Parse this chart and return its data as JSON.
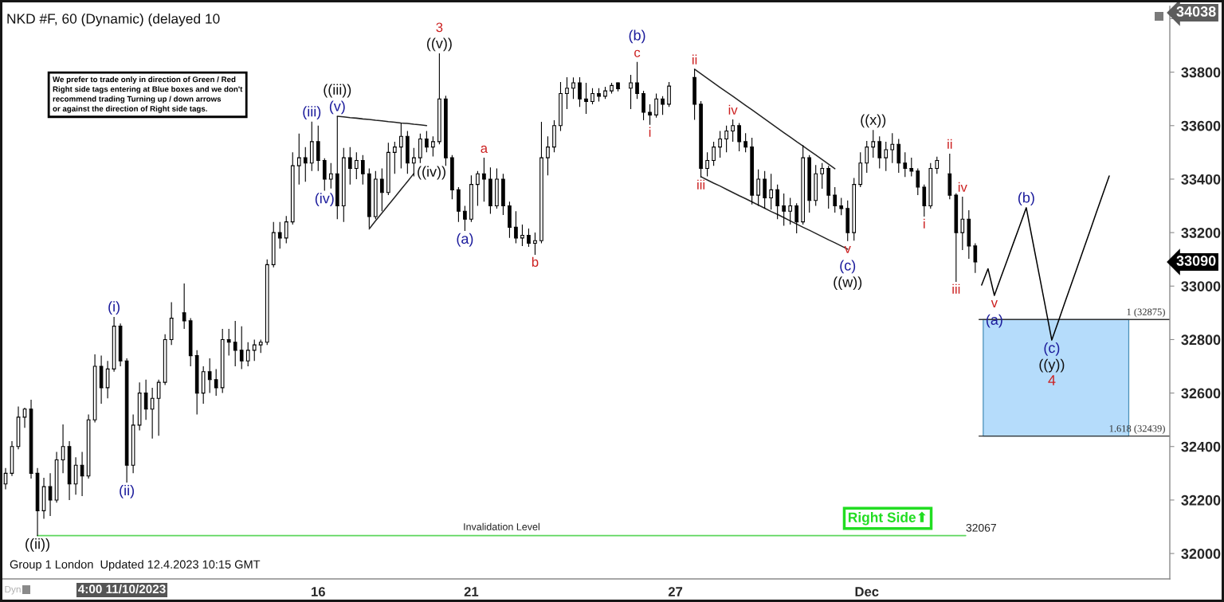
{
  "chart_data": {
    "type": "candlestick",
    "title": "NKD #F, 60 (Dynamic) (delayed 10",
    "color": "#000000",
    "categories": [
      null,
      null,
      null,
      null,
      null,
      null,
      null,
      null,
      null,
      null,
      null,
      null,
      null,
      null,
      null,
      null,
      null,
      null,
      null,
      null,
      null,
      null,
      null,
      null,
      null,
      null,
      null,
      null,
      null,
      null,
      null,
      null,
      null,
      null,
      null,
      null,
      null,
      null,
      null,
      null,
      null,
      null,
      null,
      null,
      null,
      null,
      null,
      null,
      null,
      "16",
      null,
      null,
      null,
      null,
      null,
      null,
      null,
      null,
      null,
      null,
      null,
      null,
      null,
      null,
      null,
      null,
      null,
      null,
      null,
      null,
      null,
      null,
      null,
      "21",
      null,
      null,
      null,
      null,
      null,
      null,
      null,
      null,
      null,
      null,
      null,
      null,
      null,
      null,
      null,
      null,
      null,
      null,
      null,
      null,
      null,
      null,
      null,
      null,
      null,
      null,
      null,
      null,
      null,
      null,
      null,
      "27",
      null,
      null,
      null,
      null,
      null,
      null,
      null,
      null,
      null,
      null,
      null,
      null,
      null,
      null,
      null,
      null,
      null,
      null,
      null,
      null,
      null,
      null,
      null,
      null,
      null,
      null,
      null,
      null,
      null,
      "Dec",
      null,
      null,
      null,
      null,
      null,
      null,
      null,
      null,
      null,
      null,
      null,
      null,
      null,
      null,
      null,
      null,
      null,
      null,
      null,
      null,
      null,
      null,
      null,
      null,
      null,
      null,
      null,
      null,
      null,
      null,
      null,
      null,
      null,
      null,
      null,
      null,
      null,
      null,
      null,
      null,
      null,
      null,
      null,
      null,
      null,
      null,
      null
    ],
    "ohlc": [
      [
        32260,
        32320,
        32240,
        32300
      ],
      [
        32300,
        32420,
        32290,
        32400
      ],
      [
        32400,
        32550,
        32390,
        32510
      ],
      [
        32510,
        32545,
        32470,
        32540
      ],
      [
        32540,
        32575,
        32280,
        32300
      ],
      [
        32300,
        32320,
        32065,
        32160
      ],
      [
        32160,
        32283,
        32130,
        32250
      ],
      [
        32250,
        32300,
        32140,
        32200
      ],
      [
        32200,
        32380,
        32190,
        32350
      ],
      [
        32350,
        32483,
        32300,
        32400
      ],
      [
        32400,
        32420,
        32200,
        32260
      ],
      [
        32260,
        32360,
        32220,
        32330
      ],
      [
        32330,
        32380,
        32215,
        32290
      ],
      [
        32290,
        32520,
        32280,
        32500
      ],
      [
        32500,
        32745,
        32490,
        32700
      ],
      [
        32700,
        32740,
        32560,
        32620
      ],
      [
        32620,
        32720,
        32580,
        32690
      ],
      [
        32690,
        32885,
        32680,
        32850
      ],
      [
        32850,
        32860,
        32700,
        32720
      ],
      [
        32720,
        32730,
        32265,
        32330
      ],
      [
        32330,
        32520,
        32300,
        32480
      ],
      [
        32480,
        32640,
        32460,
        32600
      ],
      [
        32600,
        32650,
        32500,
        32540
      ],
      [
        32540,
        32620,
        32430,
        32580
      ],
      [
        32580,
        32650,
        32440,
        32640
      ],
      [
        32640,
        32820,
        32630,
        32800
      ],
      [
        32800,
        32940,
        32780,
        32880
      ],
      null,
      [
        32900,
        33010,
        32840,
        32870
      ],
      [
        32870,
        32880,
        32700,
        32740
      ],
      [
        32740,
        32760,
        32520,
        32600
      ],
      [
        32600,
        32700,
        32560,
        32680
      ],
      [
        32680,
        32730,
        32600,
        32650
      ],
      [
        32650,
        32690,
        32590,
        32620
      ],
      [
        32620,
        32840,
        32600,
        32800
      ],
      [
        32800,
        32840,
        32740,
        32790
      ],
      [
        32790,
        32870,
        32700,
        32760
      ],
      [
        32760,
        32850,
        32690,
        32720
      ],
      [
        32720,
        32790,
        32700,
        32760
      ],
      [
        32760,
        32800,
        32720,
        32780
      ],
      [
        32780,
        32800,
        32750,
        32790
      ],
      [
        32790,
        33100,
        32780,
        33080
      ],
      [
        33080,
        33240,
        33070,
        33200
      ],
      [
        33200,
        33240,
        33140,
        33180
      ],
      [
        33180,
        33262,
        33160,
        33240
      ],
      [
        33240,
        33500,
        33230,
        33450
      ],
      [
        33450,
        33570,
        33380,
        33480
      ],
      [
        33480,
        33520,
        33390,
        33460
      ],
      [
        33460,
        33615,
        33430,
        33540
      ],
      [
        33540,
        33600,
        33430,
        33470
      ],
      [
        33470,
        33478,
        33357,
        33400
      ],
      [
        33400,
        33460,
        33365,
        33420
      ],
      [
        33420,
        33635,
        33250,
        33300
      ],
      [
        33300,
        33517,
        33240,
        33480
      ],
      [
        33480,
        33520,
        33380,
        33440
      ],
      [
        33440,
        33500,
        33400,
        33470
      ],
      [
        33470,
        33490,
        33380,
        33420
      ],
      [
        33420,
        33440,
        33218,
        33260
      ],
      [
        33260,
        33430,
        33250,
        33400
      ],
      [
        33400,
        33440,
        33280,
        33350
      ],
      [
        33350,
        33536,
        33340,
        33500
      ],
      [
        33500,
        33540,
        33420,
        33520
      ],
      [
        33520,
        33610,
        33440,
        33560
      ],
      [
        33560,
        33580,
        33420,
        33460
      ],
      [
        33460,
        33517,
        33410,
        33480
      ],
      [
        33480,
        33570,
        33460,
        33550
      ],
      [
        33550,
        33580,
        33500,
        33520
      ],
      [
        33520,
        33560,
        33485,
        33540
      ],
      [
        33540,
        33870,
        33530,
        33700
      ],
      [
        33700,
        33712,
        33450,
        33480
      ],
      [
        33480,
        33490,
        33325,
        33360
      ],
      [
        33360,
        33370,
        33240,
        33280
      ],
      [
        33280,
        33300,
        33206,
        33250
      ],
      [
        33250,
        33414,
        33240,
        33380
      ],
      [
        33380,
        33430,
        33300,
        33420
      ],
      [
        33420,
        33480,
        33316,
        33400
      ],
      [
        33400,
        33444,
        33270,
        33300
      ],
      [
        33300,
        33440,
        33290,
        33400
      ],
      [
        33400,
        33420,
        33266,
        33300
      ],
      [
        33300,
        33316,
        33180,
        33220
      ],
      [
        33220,
        33280,
        33160,
        33180
      ],
      [
        33180,
        33230,
        33150,
        33190
      ],
      [
        33190,
        33215,
        33147,
        33160
      ],
      [
        33160,
        33200,
        33117,
        33170
      ],
      [
        33170,
        33614,
        33160,
        33480
      ],
      [
        33480,
        33560,
        33414,
        33520
      ],
      [
        33520,
        33620,
        33500,
        33600
      ],
      [
        33600,
        33763,
        33580,
        33720
      ],
      [
        33720,
        33781,
        33662,
        33740
      ],
      [
        33740,
        33780,
        33700,
        33760
      ],
      [
        33760,
        33781,
        33670,
        33700
      ],
      [
        33700,
        33760,
        33644,
        33690
      ],
      [
        33690,
        33740,
        33680,
        33720
      ],
      [
        33720,
        33740,
        33690,
        33710
      ],
      [
        33710,
        33745,
        33700,
        33730
      ],
      [
        33730,
        33760,
        33720,
        33750
      ],
      [
        33760,
        33762,
        33728,
        33738
      ],
      null,
      [
        33740,
        33790,
        33662,
        33760
      ],
      [
        33760,
        33838,
        33700,
        33720
      ],
      [
        33720,
        33730,
        33620,
        33650
      ],
      [
        33650,
        33680,
        33603,
        33640
      ],
      [
        33640,
        33720,
        33630,
        33700
      ],
      [
        33700,
        33710,
        33640,
        33680
      ],
      [
        33680,
        33763,
        33670,
        33748
      ],
      null,
      null,
      null,
      [
        33780,
        33811,
        33622,
        33680
      ],
      [
        33680,
        33692,
        33406,
        33440
      ],
      [
        33440,
        33500,
        33410,
        33470
      ],
      [
        33470,
        33540,
        33450,
        33520
      ],
      [
        33520,
        33580,
        33480,
        33550
      ],
      [
        33550,
        33600,
        33500,
        33580
      ],
      [
        33580,
        33623,
        33540,
        33600
      ],
      [
        33600,
        33610,
        33504,
        33540
      ],
      [
        33540,
        33572,
        33500,
        33520
      ],
      [
        33520,
        33555,
        33305,
        33340
      ],
      [
        33340,
        33436,
        33300,
        33400
      ],
      [
        33400,
        33430,
        33290,
        33330
      ],
      [
        33330,
        33420,
        33286,
        33360
      ],
      [
        33360,
        33380,
        33250,
        33300
      ],
      [
        33300,
        33346,
        33226,
        33280
      ],
      [
        33280,
        33330,
        33230,
        33300
      ],
      [
        33300,
        33310,
        33197,
        33240
      ],
      [
        33240,
        33527,
        33230,
        33480
      ],
      [
        33480,
        33490,
        33275,
        33320
      ],
      [
        33320,
        33453,
        33300,
        33420
      ],
      [
        33420,
        33460,
        33364,
        33440
      ],
      [
        33440,
        33450,
        33290,
        33340
      ],
      [
        33340,
        33370,
        33275,
        33300
      ],
      [
        33300,
        33330,
        33265,
        33290
      ],
      [
        33290,
        33320,
        33168,
        33200
      ],
      [
        33200,
        33404,
        33170,
        33380
      ],
      [
        33380,
        33500,
        33370,
        33460
      ],
      [
        33460,
        33543,
        33424,
        33520
      ],
      [
        33520,
        33584,
        33480,
        33540
      ],
      [
        33540,
        33560,
        33440,
        33480
      ],
      [
        33480,
        33540,
        33430,
        33510
      ],
      [
        33510,
        33572,
        33460,
        33530
      ],
      [
        33530,
        33550,
        33424,
        33460
      ],
      [
        33460,
        33500,
        33408,
        33440
      ],
      [
        33440,
        33480,
        33410,
        33430
      ],
      [
        33430,
        33440,
        33340,
        33370
      ],
      [
        33370,
        33380,
        33260,
        33300
      ],
      [
        33300,
        33460,
        33290,
        33440
      ],
      [
        33440,
        33484,
        33420,
        33470
      ],
      null,
      [
        33420,
        33495,
        33325,
        33340
      ],
      [
        33340,
        33347,
        33016,
        33200
      ],
      [
        33200,
        33334,
        33135,
        33250
      ],
      [
        33250,
        33284,
        33102,
        33150
      ],
      [
        33150,
        33160,
        33049,
        33090
      ],
      null,
      null,
      null,
      null,
      null,
      null,
      null,
      null,
      null,
      null,
      null,
      null,
      null,
      null,
      null,
      null,
      null,
      null,
      null,
      null,
      null,
      null,
      null,
      null,
      null,
      null,
      null,
      null,
      null,
      null
    ],
    "series": [
      {
        "type": "line",
        "color": "#000000",
        "values": [
          null,
          null,
          null,
          null,
          null,
          null,
          null,
          null,
          null,
          null,
          null,
          null,
          null,
          null,
          null,
          null,
          null,
          null,
          null,
          null,
          null,
          null,
          null,
          null,
          null,
          null,
          null,
          null,
          null,
          null,
          null,
          null,
          null,
          null,
          null,
          null,
          null,
          null,
          null,
          null,
          null,
          null,
          null,
          null,
          null,
          null,
          null,
          null,
          null,
          null,
          null,
          null,
          null,
          null,
          null,
          null,
          null,
          null,
          null,
          null,
          null,
          null,
          null,
          null,
          null,
          null,
          null,
          null,
          null,
          null,
          null,
          null,
          null,
          null,
          null,
          null,
          null,
          null,
          null,
          null,
          null,
          null,
          null,
          null,
          null,
          null,
          null,
          null,
          null,
          null,
          null,
          null,
          null,
          null,
          null,
          null,
          null,
          null,
          null,
          null,
          null,
          null,
          null,
          null,
          null,
          null,
          null,
          null,
          null,
          null,
          null,
          null,
          null,
          null,
          null,
          null,
          null,
          null,
          null,
          null,
          null,
          null,
          null,
          null,
          null,
          null,
          null,
          null,
          null,
          null,
          null,
          null,
          null,
          null,
          null,
          null,
          null,
          null,
          null,
          null,
          null,
          null,
          null,
          null,
          null,
          null,
          null,
          null,
          null,
          null,
          null,
          null,
          null,
          33004,
          33065,
          32965,
          33031,
          33096,
          33162,
          33227,
          33293,
          33169,
          33046,
          32922,
          32798,
          32866,
          32935,
          33003,
          33071,
          33139,
          33207,
          33276,
          33344,
          33412,
          null,
          null,
          null,
          null,
          null,
          null,
          null,
          null,
          null
        ]
      },
      {
        "type": "line",
        "color": "#222222",
        "values": [
          null,
          null,
          null,
          null,
          null,
          null,
          null,
          null,
          null,
          null,
          null,
          null,
          null,
          null,
          null,
          null,
          null,
          null,
          null,
          null,
          null,
          null,
          null,
          null,
          null,
          null,
          null,
          null,
          null,
          null,
          null,
          null,
          null,
          null,
          null,
          null,
          null,
          null,
          null,
          null,
          null,
          null,
          null,
          null,
          null,
          null,
          null,
          null,
          null,
          null,
          null,
          null,
          33635,
          33633,
          33630,
          33628,
          33625,
          33623,
          33620,
          33618,
          33615,
          33613,
          33610,
          33608,
          33605,
          33603,
          33600,
          null,
          null,
          null,
          null,
          null,
          null,
          null,
          null,
          null,
          null,
          null,
          null,
          null,
          null,
          null,
          null,
          null,
          null,
          null,
          null,
          null,
          null,
          null,
          null,
          null,
          null,
          null,
          null,
          null,
          null,
          null,
          null,
          null,
          null,
          null,
          null,
          null,
          null,
          null,
          null,
          null,
          null,
          null,
          null,
          null,
          null,
          null,
          null,
          null,
          null,
          null,
          null,
          null,
          null,
          null,
          null,
          null,
          null,
          null,
          null,
          null,
          null,
          null,
          null,
          null,
          null,
          null,
          null,
          null,
          null,
          null,
          null,
          null,
          null,
          null,
          null,
          null,
          null,
          null,
          null,
          null,
          null,
          null,
          null,
          null,
          null,
          null,
          null,
          null,
          null,
          null,
          null,
          null,
          null,
          null,
          null,
          null,
          null,
          null,
          null,
          null,
          null,
          null,
          null,
          null,
          null,
          null,
          null,
          null,
          null,
          null,
          null,
          null,
          null,
          null,
          null
        ]
      },
      {
        "type": "line",
        "color": "#222222",
        "values": [
          null,
          null,
          null,
          null,
          null,
          null,
          null,
          null,
          null,
          null,
          null,
          null,
          null,
          null,
          null,
          null,
          null,
          null,
          null,
          null,
          null,
          null,
          null,
          null,
          null,
          null,
          null,
          null,
          null,
          null,
          null,
          null,
          null,
          null,
          null,
          null,
          null,
          null,
          null,
          null,
          null,
          null,
          null,
          null,
          null,
          null,
          null,
          null,
          null,
          null,
          null,
          null,
          null,
          null,
          null,
          null,
          null,
          33214,
          33244,
          33273,
          33303,
          33332,
          33362,
          33391,
          33421,
          null,
          null,
          null,
          null,
          null,
          null,
          null,
          null,
          null,
          null,
          null,
          null,
          null,
          null,
          null,
          null,
          null,
          null,
          null,
          null,
          null,
          null,
          null,
          null,
          null,
          null,
          null,
          null,
          null,
          null,
          null,
          null,
          null,
          null,
          null,
          null,
          null,
          null,
          null,
          null,
          null,
          null,
          null,
          null,
          null,
          null,
          null,
          null,
          null,
          null,
          null,
          null,
          null,
          null,
          null,
          null,
          null,
          null,
          null,
          null,
          null,
          null,
          null,
          null,
          null,
          null,
          null,
          null,
          null,
          null,
          null,
          null,
          null,
          null,
          null,
          null,
          null,
          null,
          null,
          null,
          null,
          null,
          null,
          null,
          null,
          null,
          null,
          null,
          null,
          null,
          null,
          null,
          null,
          null,
          null,
          null,
          null,
          null,
          null,
          null,
          null,
          null,
          null,
          null,
          null,
          null,
          null,
          null,
          null,
          null,
          null,
          null,
          null,
          null,
          null,
          null,
          null,
          null
        ]
      },
      {
        "type": "line",
        "color": "#222222",
        "values": [
          null,
          null,
          null,
          null,
          null,
          null,
          null,
          null,
          null,
          null,
          null,
          null,
          null,
          null,
          null,
          null,
          null,
          null,
          null,
          null,
          null,
          null,
          null,
          null,
          null,
          null,
          null,
          null,
          null,
          null,
          null,
          null,
          null,
          null,
          null,
          null,
          null,
          null,
          null,
          null,
          null,
          null,
          null,
          null,
          null,
          null,
          null,
          null,
          null,
          null,
          null,
          null,
          null,
          null,
          null,
          null,
          null,
          null,
          null,
          null,
          null,
          null,
          null,
          null,
          null,
          null,
          null,
          null,
          null,
          null,
          null,
          null,
          null,
          null,
          null,
          null,
          null,
          null,
          null,
          null,
          null,
          null,
          null,
          null,
          null,
          null,
          null,
          null,
          null,
          null,
          null,
          null,
          null,
          null,
          null,
          null,
          null,
          null,
          null,
          null,
          null,
          null,
          null,
          null,
          null,
          null,
          null,
          null,
          33811,
          33794,
          33777,
          33760,
          33743,
          33726,
          33710,
          33693,
          33676,
          33659,
          33642,
          33625,
          33608,
          33591,
          33574,
          33557,
          33540,
          33524,
          33507,
          33490,
          33473,
          33456,
          33439,
          null,
          null,
          null,
          null,
          null,
          null,
          null,
          null,
          null,
          null,
          null,
          null,
          null,
          null,
          null,
          null,
          null,
          null,
          null,
          null,
          null,
          null,
          null,
          null,
          null,
          null,
          null,
          null,
          null,
          null,
          null,
          null,
          null,
          null,
          null,
          null,
          null,
          null,
          null,
          null,
          null,
          null,
          null,
          null,
          null,
          null,
          null,
          null,
          null,
          null,
          null,
          null
        ]
      },
      {
        "type": "line",
        "color": "#222222",
        "values": [
          null,
          null,
          null,
          null,
          null,
          null,
          null,
          null,
          null,
          null,
          null,
          null,
          null,
          null,
          null,
          null,
          null,
          null,
          null,
          null,
          null,
          null,
          null,
          null,
          null,
          null,
          null,
          null,
          null,
          null,
          null,
          null,
          null,
          null,
          null,
          null,
          null,
          null,
          null,
          null,
          null,
          null,
          null,
          null,
          null,
          null,
          null,
          null,
          null,
          null,
          null,
          null,
          null,
          null,
          null,
          null,
          null,
          null,
          null,
          null,
          null,
          null,
          null,
          null,
          null,
          null,
          null,
          null,
          null,
          null,
          null,
          null,
          null,
          null,
          null,
          null,
          null,
          null,
          null,
          null,
          null,
          null,
          null,
          null,
          null,
          null,
          null,
          null,
          null,
          null,
          null,
          null,
          null,
          null,
          null,
          null,
          null,
          null,
          null,
          null,
          null,
          null,
          null,
          null,
          null,
          null,
          null,
          null,
          null,
          33409,
          33397,
          33385,
          33374,
          33362,
          33350,
          33338,
          33327,
          33315,
          33303,
          33291,
          33279,
          33268,
          33256,
          33244,
          33232,
          33220,
          33209,
          33197,
          33185,
          33173,
          33162,
          33150,
          33138,
          null,
          null,
          null,
          null,
          null,
          null,
          null,
          null,
          null,
          null,
          null,
          null,
          null,
          null,
          null,
          null,
          null,
          null,
          null,
          null,
          null,
          null,
          null,
          null,
          null,
          null,
          null,
          null,
          null,
          null,
          null,
          null,
          null,
          null,
          null,
          null,
          null,
          null,
          null,
          null,
          null,
          null,
          null,
          null,
          null,
          null,
          null,
          null,
          null,
          null
        ]
      }
    ],
    "ylim": [
      31905,
      34046
    ],
    "yticks": [
      32000,
      32200,
      32400,
      32600,
      32800,
      33000,
      33200,
      33400,
      33600,
      33800,
      {
        "value": 34000,
        "label": null
      }
    ],
    "ref_lines": [
      {
        "axis": "y",
        "value": 32067,
        "label": "Invalidation Level",
        "color": "#5cd65c"
      },
      {
        "axis": "y",
        "value": 32875,
        "label": "1 (32875)",
        "color": "#333333"
      },
      {
        "axis": "y",
        "value": 32439,
        "label": "1.618 (32439)",
        "color": "#333333"
      }
    ],
    "bands": [
      {
        "axis": "y",
        "from": 32439,
        "to": 32875,
        "color": "#b5dcfb"
      }
    ],
    "annotations": [
      "We prefer to trade only in direction of Green / Red\nRight side tags entering at Blue boxes and we don't\nrecommend trading Turning up / down arrows\nor against the direction of Right side tags.",
      "Group 1 London  Updated 12.4.2023 10:15 GMT",
      "Right Side⬆",
      "4:00 11/10/2023",
      "Dyn",
      "((iv))",
      "4",
      "32067",
      "34038",
      "33090",
      {
        "text": "((ii))",
        "y": 32065
      },
      {
        "text": "(i)",
        "y": 32885
      },
      {
        "text": "(ii)",
        "y": 32265
      },
      {
        "text": "(iii)",
        "y": 33615
      },
      {
        "text": "(iv)",
        "y": 33357
      },
      {
        "text": "(v)",
        "y": 33635
      },
      {
        "text": "((iii))",
        "y": 33635
      },
      {
        "text": "((v))",
        "y": 33870
      },
      {
        "text": "3",
        "y": 33870
      },
      {
        "text": "(a)",
        "y": 33206
      },
      {
        "text": "a",
        "y": 33480
      },
      {
        "text": "b",
        "y": 33117
      },
      {
        "text": "c",
        "y": 33838
      },
      {
        "text": "(b)",
        "y": 33838
      },
      {
        "text": "i",
        "y": 33603
      },
      {
        "text": "ii",
        "y": 33811
      },
      {
        "text": "iii",
        "y": 33406
      },
      {
        "text": "iv",
        "y": 33623
      },
      {
        "text": "v",
        "y": 33168
      },
      {
        "text": "(c)",
        "y": 33168
      },
      {
        "text": "((w))",
        "y": 33168
      },
      {
        "text": "((x))",
        "y": 33584
      },
      {
        "text": "i",
        "y": 33260
      },
      {
        "text": "ii",
        "y": 33495
      },
      {
        "text": "iii",
        "y": 33016
      },
      {
        "text": "iv",
        "y": 33334
      },
      {
        "text": "v",
        "y": 32965
      },
      {
        "text": "(a)",
        "y": 32965
      },
      {
        "text": "(b)",
        "y": 33293
      },
      {
        "text": "(c)",
        "y": 32798
      },
      {
        "text": "((y))",
        "y": 32798
      }
    ]
  }
}
